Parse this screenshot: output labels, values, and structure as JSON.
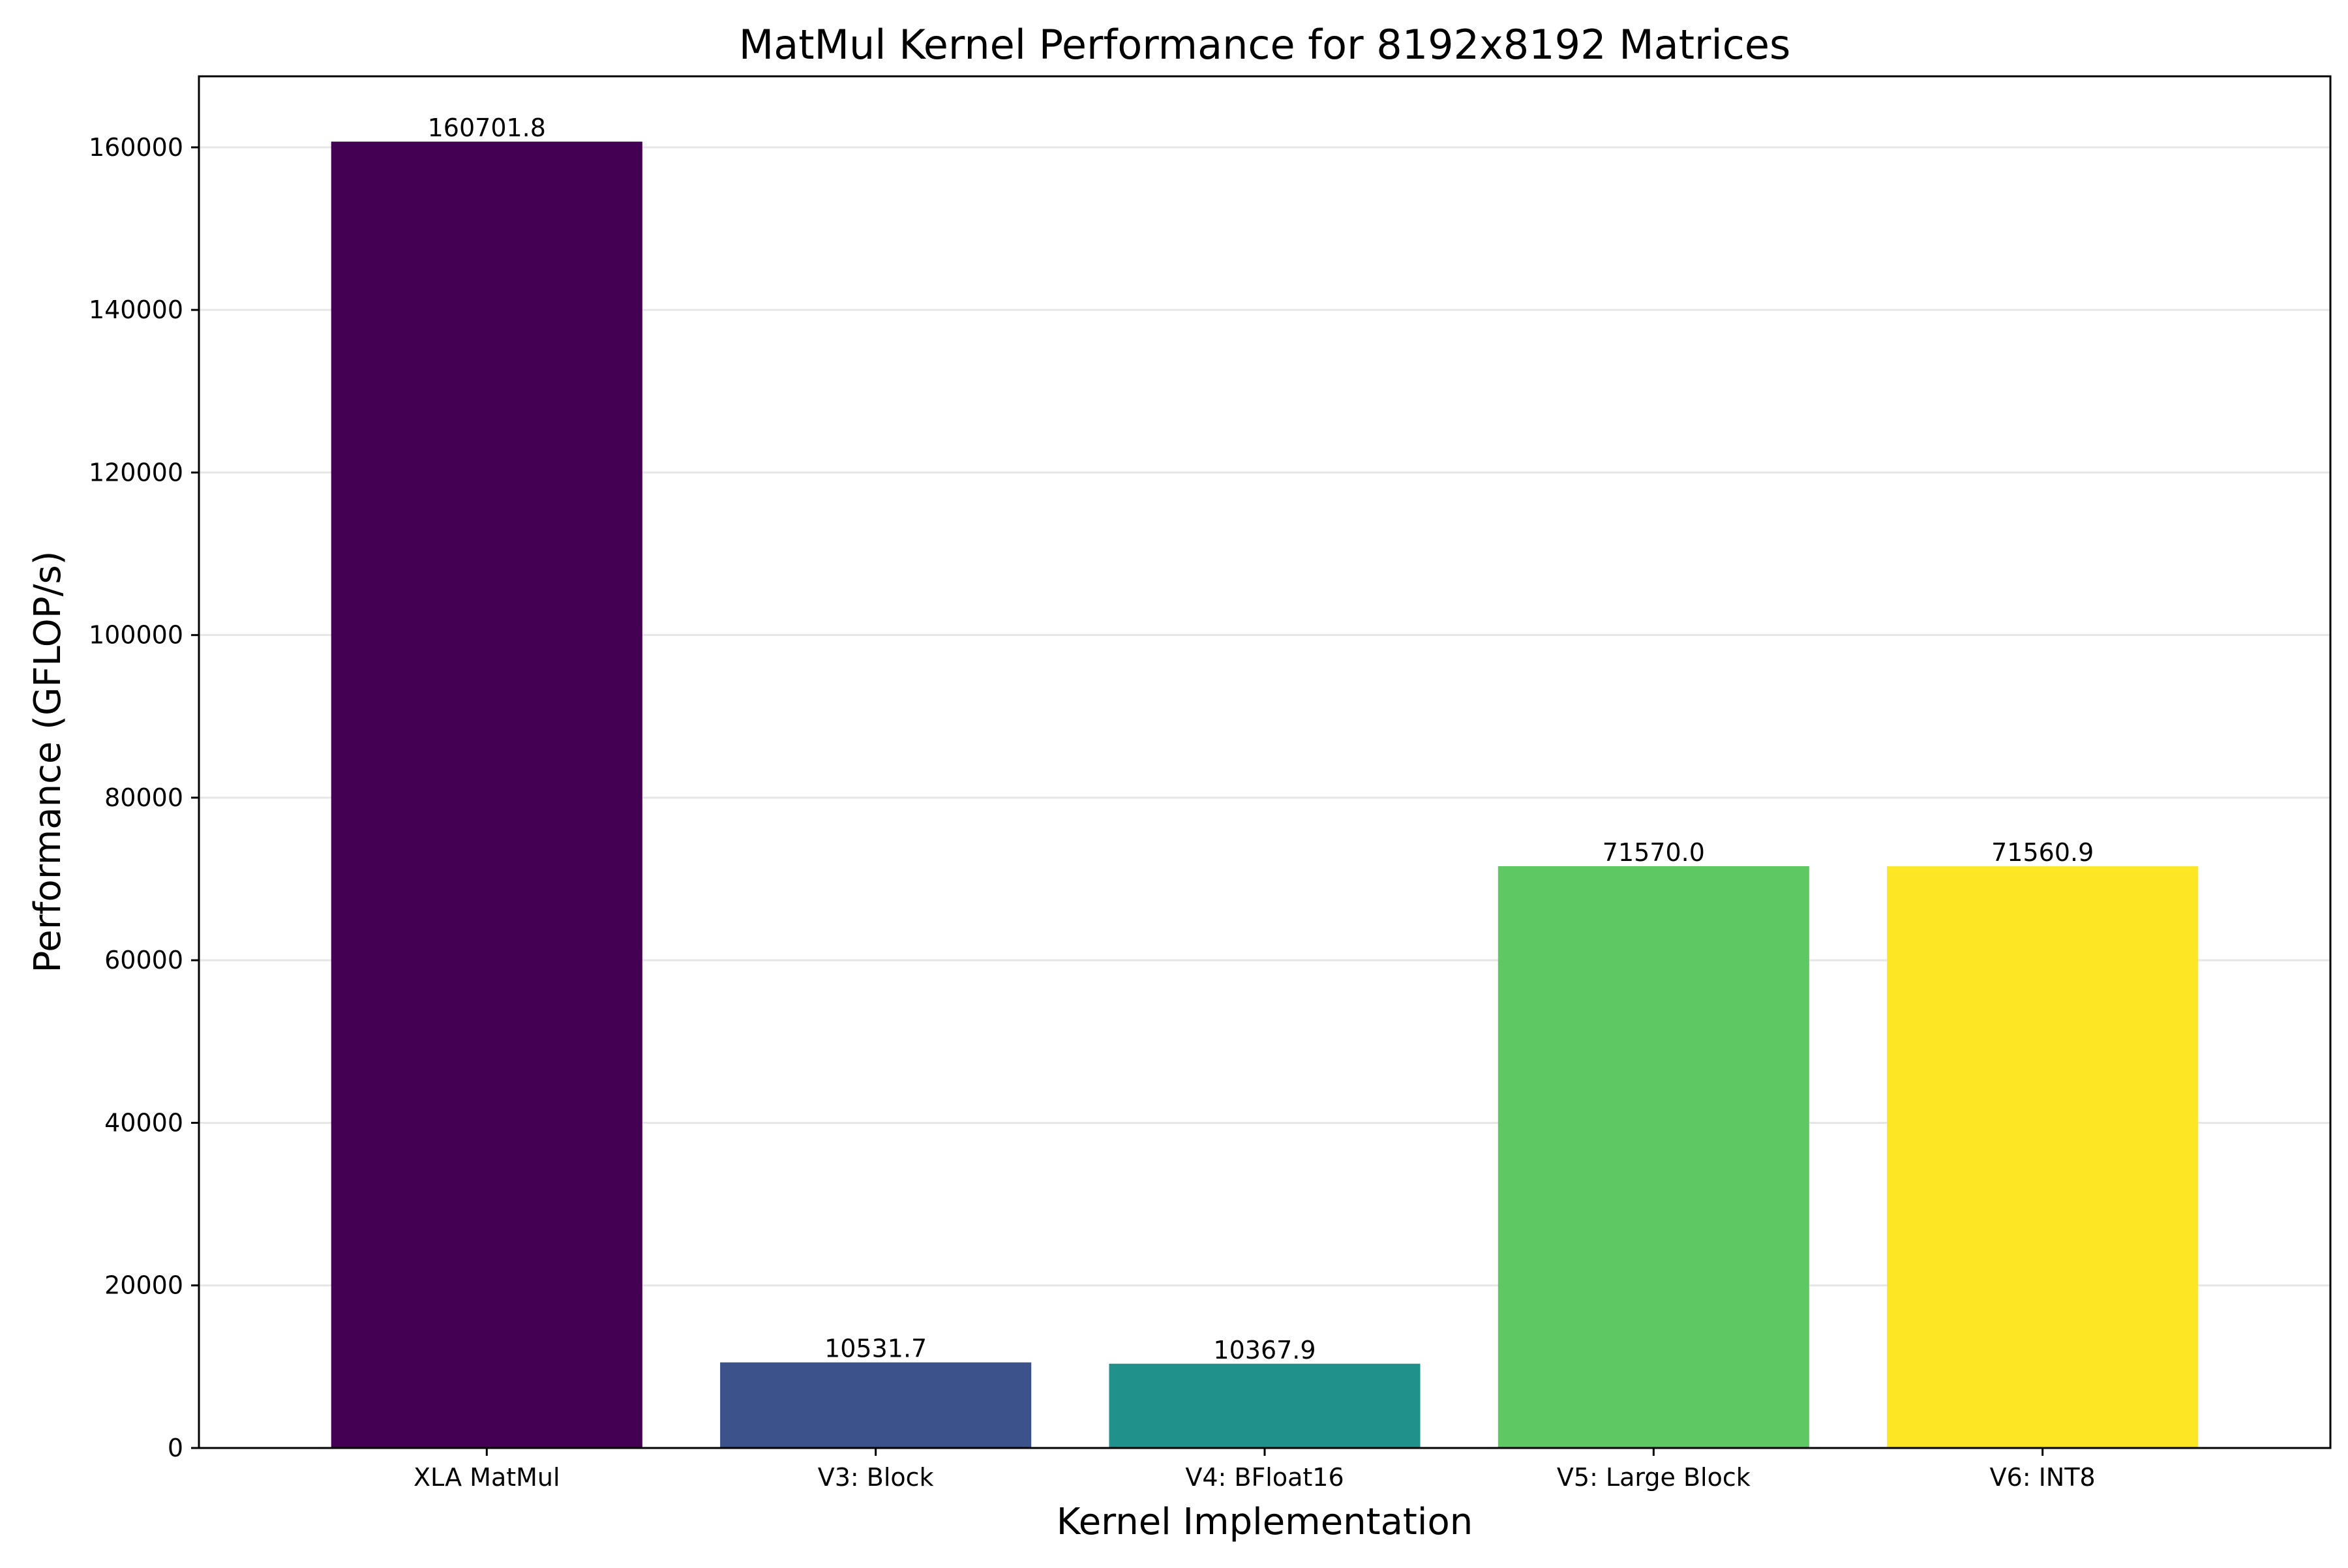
{
  "chart_data": {
    "type": "bar",
    "title": "MatMul Kernel Performance for 8192x8192 Matrices",
    "xlabel": "Kernel Implementation",
    "ylabel": "Performance (GFLOP/s)",
    "categories": [
      "XLA MatMul",
      "V3: Block",
      "V4: BFloat16",
      "V5: Large Block",
      "V6: INT8"
    ],
    "values": [
      160701.8,
      10531.7,
      10367.9,
      71570.0,
      71560.9
    ],
    "value_labels": [
      "160701.8",
      "10531.7",
      "10367.9",
      "71570.0",
      "71560.9"
    ],
    "colors": [
      "#440154",
      "#3b528b",
      "#21918c",
      "#5ec962",
      "#fde725"
    ],
    "ylim": [
      0,
      168736.9
    ],
    "yticks": [
      0,
      20000,
      40000,
      60000,
      80000,
      100000,
      120000,
      140000,
      160000
    ],
    "ytick_labels": [
      "0",
      "20000",
      "40000",
      "60000",
      "80000",
      "100000",
      "120000",
      "140000",
      "160000"
    ],
    "grid": "y",
    "legend": "none"
  }
}
